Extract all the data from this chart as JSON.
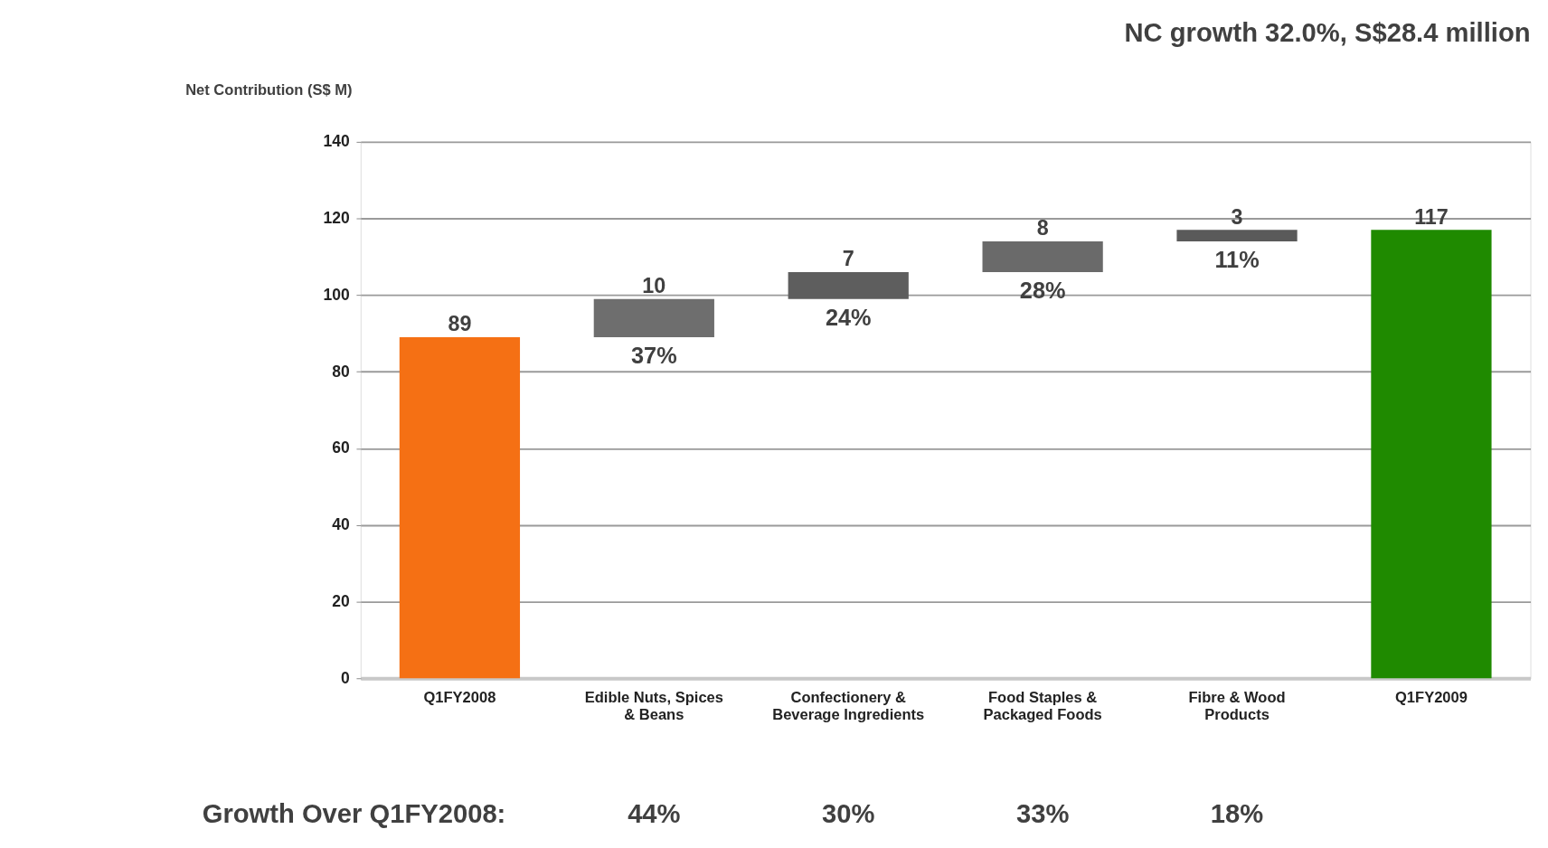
{
  "chart_data": {
    "type": "bar",
    "title": "NC growth 32.0%, S$28.4 million",
    "ylabel": "Net Contribution (S$ M)",
    "categories": [
      "Q1FY2008",
      "Edible Nuts, Spices & Beans",
      "Confectionery & Beverage Ingredients",
      "Food Staples & Packaged Foods",
      "Fibre & Wood Products",
      "Q1FY2009"
    ],
    "values": [
      89,
      10,
      7,
      8,
      3,
      117
    ],
    "base": [
      0,
      89,
      99,
      106,
      114,
      0
    ],
    "colors": [
      "#f57014",
      "#6e6e6e",
      "#5e5e5e",
      "#6a6a6a",
      "#5a5a5a",
      "#1f8a00"
    ],
    "ylim": [
      0,
      140
    ],
    "yticks": [
      0,
      20,
      40,
      60,
      80,
      100,
      120,
      140
    ],
    "grid": "y",
    "data_labels": true,
    "annotations": [
      {
        "text": "37%",
        "x": "Edible Nuts, Spices & Beans",
        "y": 89
      },
      {
        "text": "24%",
        "x": "Confectionery & Beverage Ingredients",
        "y": 99
      },
      {
        "text": "28%",
        "x": "Food Staples & Packaged Foods",
        "y": 106
      },
      {
        "text": "11%",
        "x": "Fibre & Wood Products",
        "y": 114
      },
      "Growth Over Q1FY2008:",
      "44%",
      "30%",
      "33%",
      "18%"
    ]
  }
}
